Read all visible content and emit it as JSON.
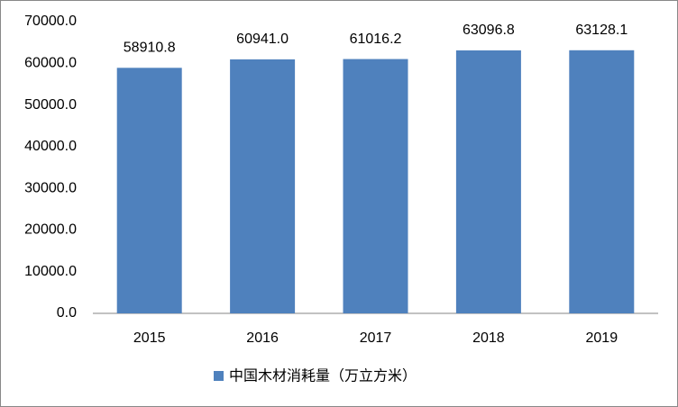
{
  "chart_data": {
    "type": "bar",
    "categories": [
      "2015",
      "2016",
      "2017",
      "2018",
      "2019"
    ],
    "series": [
      {
        "name": "中国木材消耗量（万立方米）",
        "color": "#4f81bd",
        "values": [
          58910.8,
          60941.0,
          61016.2,
          63096.8,
          63128.1
        ],
        "value_labels": [
          "58910.8",
          "60941.0",
          "61016.2",
          "63096.8",
          "63128.1"
        ]
      }
    ],
    "ylim": [
      0,
      70000
    ],
    "yticks": [
      {
        "value": 0,
        "label": "0.0"
      },
      {
        "value": 10000,
        "label": "10000.0"
      },
      {
        "value": 20000,
        "label": "20000.0"
      },
      {
        "value": 30000,
        "label": "30000.0"
      },
      {
        "value": 40000,
        "label": "40000.0"
      },
      {
        "value": 50000,
        "label": "50000.0"
      },
      {
        "value": 60000,
        "label": "60000.0"
      },
      {
        "value": 70000,
        "label": "70000.0"
      }
    ],
    "grid": false,
    "legend": "bottom"
  }
}
